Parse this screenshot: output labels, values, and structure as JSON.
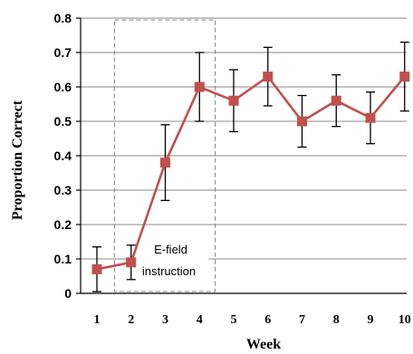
{
  "chart_data": {
    "type": "line",
    "xlabel": "Week",
    "ylabel": "Proportion Correct",
    "x": [
      1,
      2,
      3,
      4,
      5,
      6,
      7,
      8,
      9,
      10
    ],
    "ylim": [
      0,
      0.8
    ],
    "yticks": [
      0,
      0.1,
      0.2,
      0.3,
      0.4,
      0.5,
      0.6,
      0.7,
      0.8
    ],
    "ytick_labels": [
      "0",
      "0.1",
      "0.2",
      "0.3",
      "0.4",
      "0.5",
      "0.6",
      "0.7",
      "0.8"
    ],
    "xtick_labels": [
      "1",
      "2",
      "3",
      "4",
      "5",
      "6",
      "7",
      "8",
      "9",
      "10"
    ],
    "grid": "horizontal",
    "series": [
      {
        "values": [
          0.07,
          0.09,
          0.38,
          0.6,
          0.56,
          0.63,
          0.5,
          0.56,
          0.51,
          0.63
        ],
        "error_low": [
          0.005,
          0.04,
          0.27,
          0.5,
          0.47,
          0.545,
          0.425,
          0.485,
          0.435,
          0.53
        ],
        "error_high": [
          0.135,
          0.14,
          0.49,
          0.7,
          0.65,
          0.715,
          0.575,
          0.635,
          0.585,
          0.73
        ],
        "color": "#c0504d",
        "marker": "square"
      }
    ],
    "annotation": {
      "text_line1": "E-field",
      "text_line2": "instruction",
      "x_start": 2,
      "x_end": 4,
      "style": "dashed-box"
    }
  }
}
